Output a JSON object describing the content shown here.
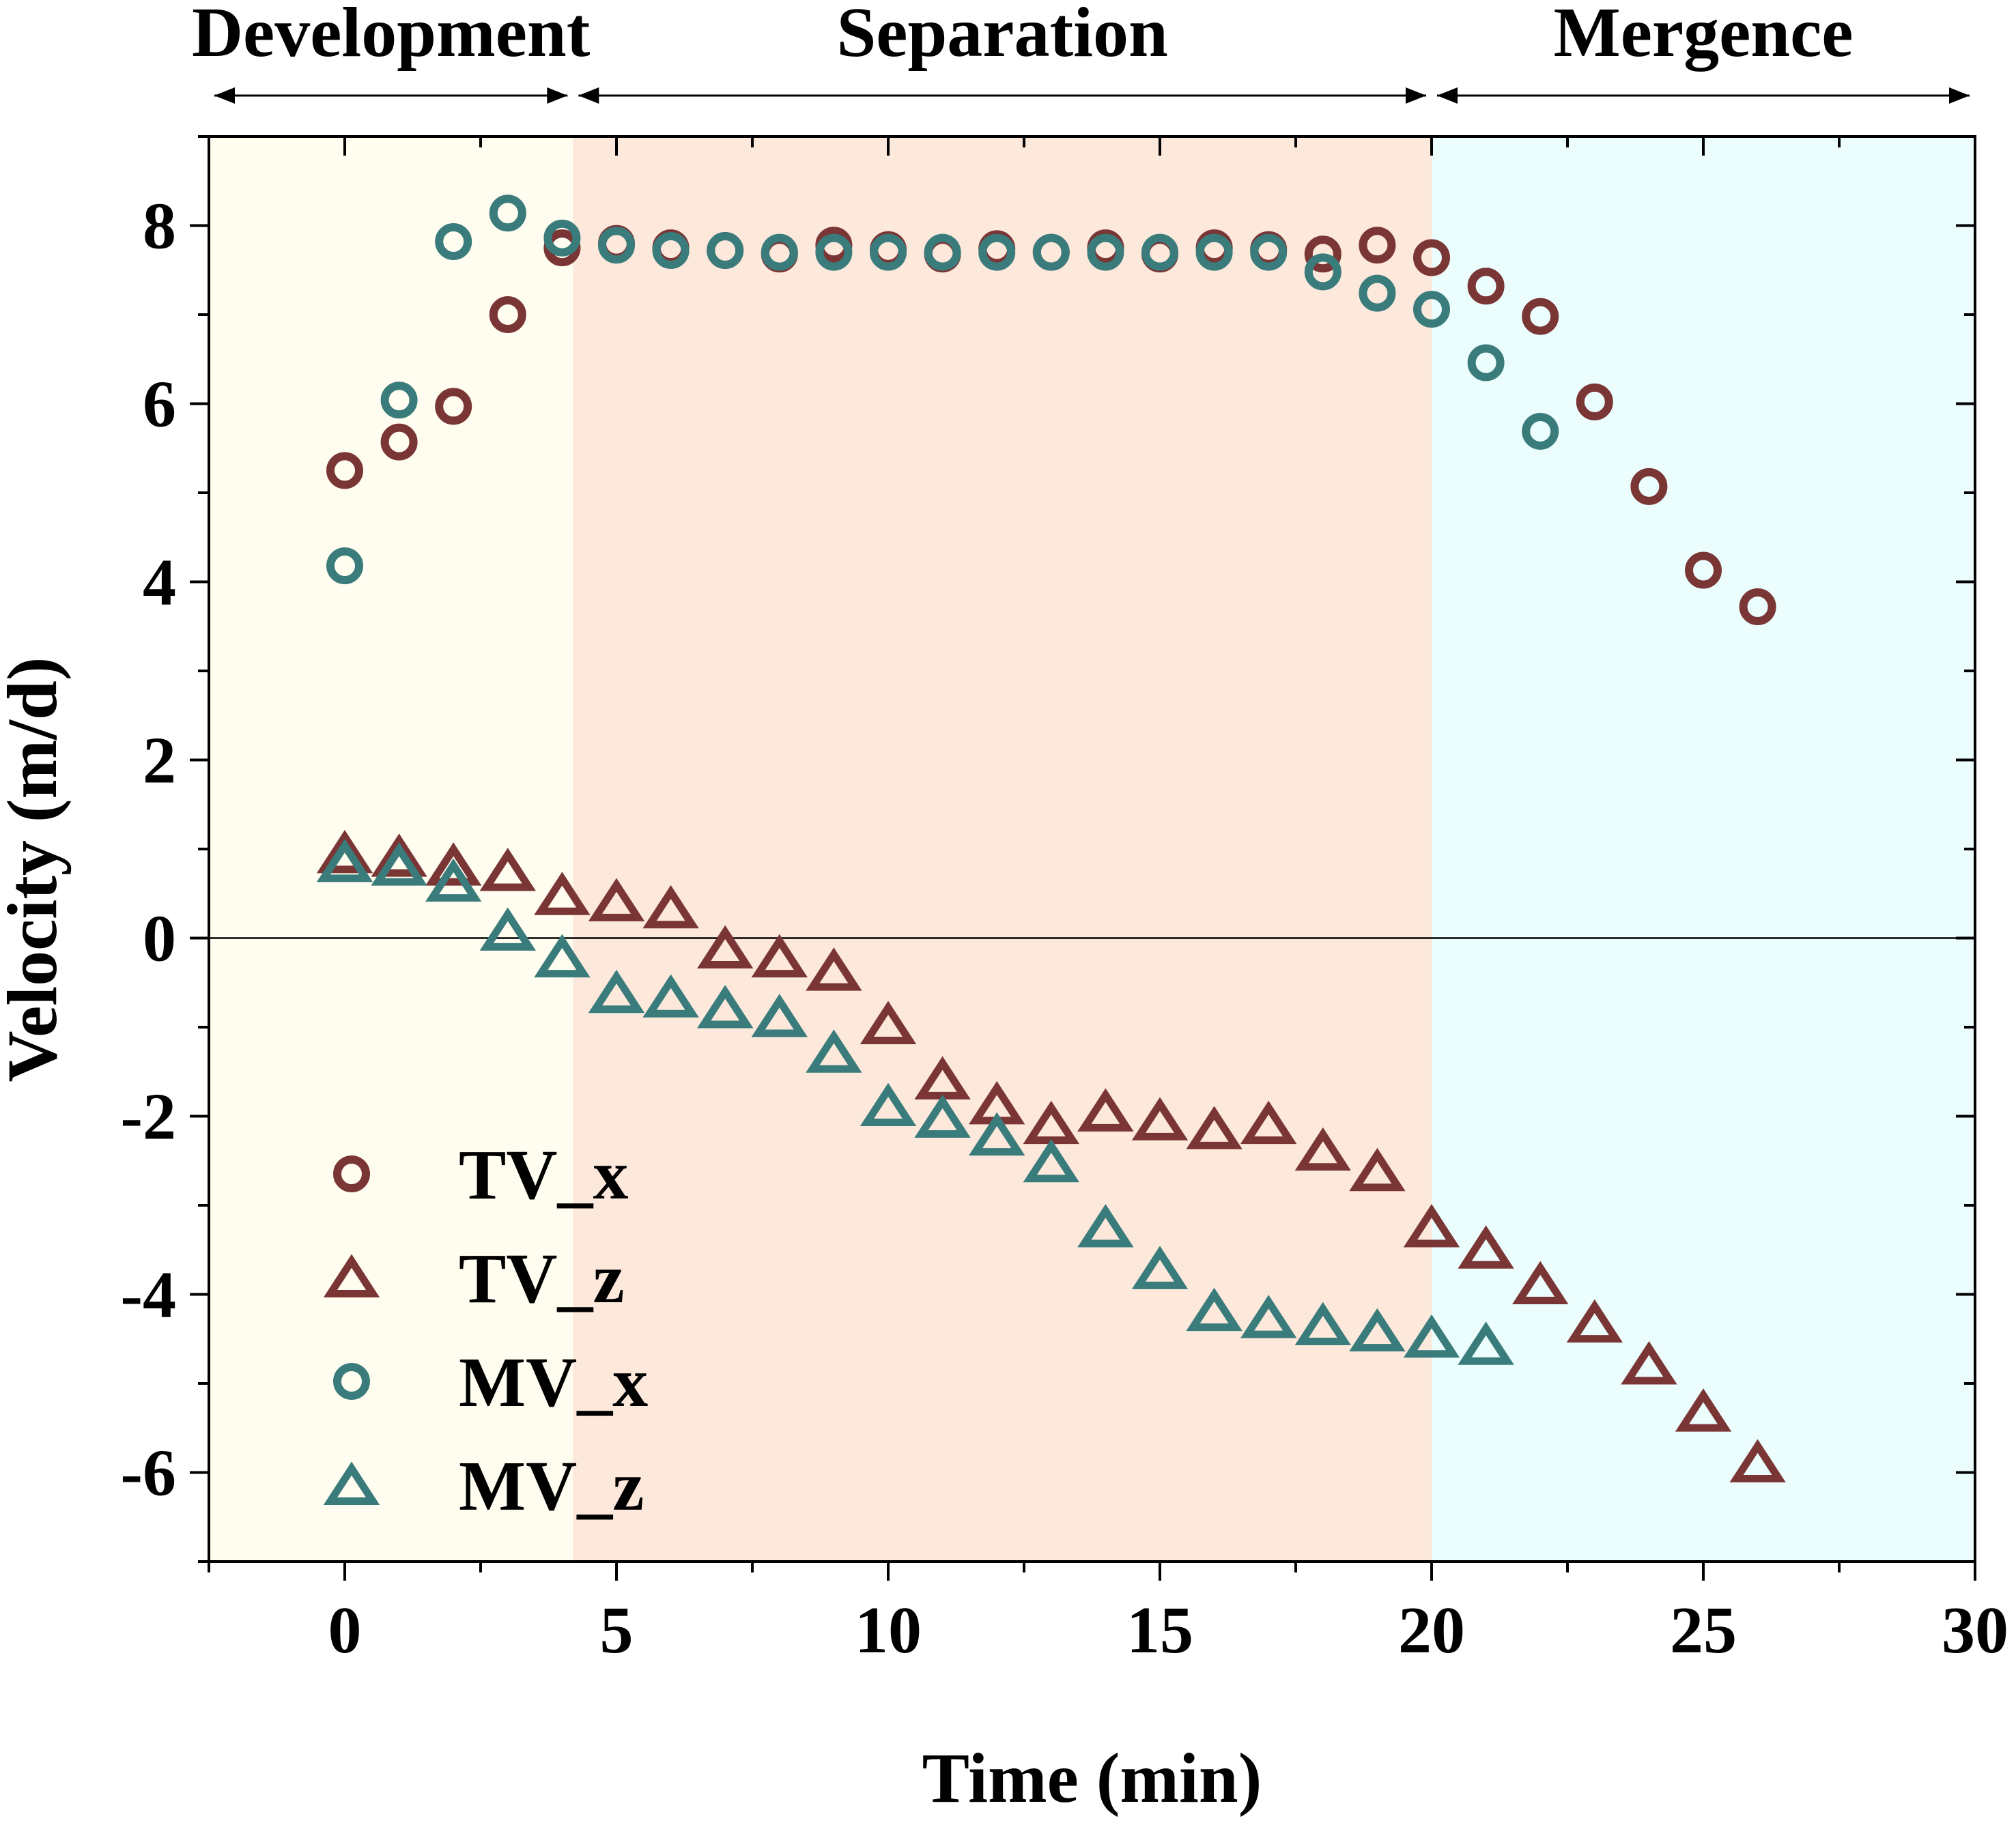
{
  "chart_data": {
    "type": "scatter",
    "title": "",
    "xlabel": "Time (min)",
    "ylabel": "Velocity (m/d)",
    "xlim": [
      -2.5,
      30
    ],
    "ylim": [
      -7,
      9
    ],
    "x_ticks": [
      0,
      5,
      10,
      15,
      20,
      25,
      30
    ],
    "x_tick_labels": [
      "0",
      "5",
      "10",
      "15",
      "20",
      "25",
      "30"
    ],
    "y_ticks": [
      -6,
      -4,
      -2,
      0,
      2,
      4,
      6,
      8
    ],
    "y_tick_labels": [
      "-6",
      "-4",
      "-2",
      "0",
      "2",
      "4",
      "6",
      "8"
    ],
    "zero_line": true,
    "grid": false,
    "legend_position": "bottom-left",
    "colors": {
      "tv": "#7a3535",
      "mv": "#3a7b7b",
      "development_bg": "#fffdf0",
      "separation_bg": "#fde8dc",
      "mergence_bg": "#ebfdfd"
    },
    "phases": [
      {
        "name": "Development",
        "start": -2.5,
        "end": 4.2,
        "color_key": "development_bg"
      },
      {
        "name": "Separation",
        "start": 4.2,
        "end": 20,
        "color_key": "separation_bg"
      },
      {
        "name": "Mergence",
        "start": 20,
        "end": 30,
        "color_key": "mergence_bg"
      }
    ],
    "series": [
      {
        "name": "TV_x",
        "marker": "circle",
        "color_key": "tv",
        "x": [
          0,
          1,
          2,
          3,
          4,
          5,
          6,
          7,
          8,
          9,
          10,
          11,
          12,
          13,
          14,
          15,
          16,
          17,
          18,
          19,
          20,
          21,
          22,
          23,
          24,
          25,
          26
        ],
        "y": [
          5.25,
          5.57,
          5.97,
          7.0,
          7.75,
          7.8,
          7.75,
          7.72,
          7.68,
          7.78,
          7.73,
          7.68,
          7.74,
          7.7,
          7.75,
          7.68,
          7.75,
          7.73,
          7.68,
          7.78,
          7.64,
          7.32,
          6.98,
          6.02,
          5.07,
          4.13,
          3.72
        ]
      },
      {
        "name": "TV_z",
        "marker": "triangle",
        "color_key": "tv",
        "x": [
          0,
          1,
          2,
          3,
          4,
          5,
          6,
          7,
          8,
          9,
          10,
          11,
          12,
          13,
          14,
          15,
          16,
          17,
          18,
          19,
          20,
          21,
          22,
          23,
          24,
          25,
          26
        ],
        "y": [
          0.92,
          0.88,
          0.78,
          0.72,
          0.45,
          0.38,
          0.3,
          -0.15,
          -0.25,
          -0.4,
          -1.0,
          -1.62,
          -1.9,
          -2.12,
          -1.98,
          -2.08,
          -2.18,
          -2.12,
          -2.42,
          -2.65,
          -3.28,
          -3.52,
          -3.92,
          -4.35,
          -4.82,
          -5.35,
          -5.92
        ]
      },
      {
        "name": "MV_x",
        "marker": "circle",
        "color_key": "mv",
        "x": [
          0,
          1,
          2,
          3,
          4,
          5,
          6,
          7,
          8,
          9,
          10,
          11,
          12,
          13,
          14,
          15,
          16,
          17,
          18,
          19,
          20,
          21,
          22
        ],
        "y": [
          4.18,
          6.04,
          7.82,
          8.14,
          7.86,
          7.78,
          7.72,
          7.72,
          7.7,
          7.7,
          7.7,
          7.7,
          7.7,
          7.7,
          7.7,
          7.7,
          7.7,
          7.7,
          7.48,
          7.24,
          7.06,
          6.46,
          5.69
        ]
      },
      {
        "name": "MV_z",
        "marker": "triangle",
        "color_key": "mv",
        "x": [
          0,
          1,
          2,
          3,
          4,
          5,
          6,
          7,
          8,
          9,
          10,
          11,
          12,
          13,
          14,
          15,
          16,
          17,
          18,
          19,
          20,
          21
        ],
        "y": [
          0.82,
          0.78,
          0.6,
          0.05,
          -0.25,
          -0.65,
          -0.7,
          -0.82,
          -0.92,
          -1.32,
          -1.92,
          -2.05,
          -2.25,
          -2.55,
          -3.28,
          -3.75,
          -4.22,
          -4.3,
          -4.38,
          -4.45,
          -4.52,
          -4.6
        ]
      }
    ]
  }
}
